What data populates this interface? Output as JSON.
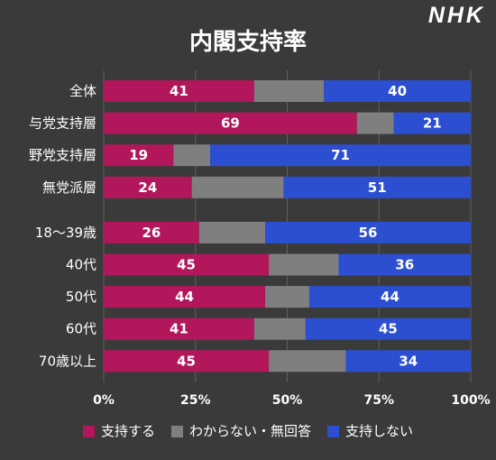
{
  "logo": {
    "text": "NHK"
  },
  "colors": {
    "background": "#3a3a3a",
    "text": "#ffffff",
    "gridline": "#5e5e5e"
  },
  "chart_data": {
    "type": "bar",
    "orientation": "horizontal",
    "stacked": true,
    "title": "内閣支持率",
    "categories": [
      "全体",
      "与党支持層",
      "野党支持層",
      "無党派層",
      "18〜39歳",
      "40代",
      "50代",
      "60代",
      "70歳以上"
    ],
    "series": [
      {
        "name": "支持する",
        "color": "#b3175b",
        "show_values": true,
        "values": [
          41,
          69,
          19,
          24,
          26,
          45,
          44,
          41,
          45
        ]
      },
      {
        "name": "わからない・無回答",
        "color": "#7f7f7f",
        "show_values": false,
        "values": [
          19,
          10,
          10,
          25,
          18,
          19,
          12,
          14,
          21
        ]
      },
      {
        "name": "支持しない",
        "color": "#2b4fd0",
        "show_values": true,
        "values": [
          40,
          21,
          71,
          51,
          56,
          36,
          44,
          45,
          34
        ]
      }
    ],
    "xlim": [
      0,
      100
    ],
    "xticks": [
      0,
      25,
      50,
      75,
      100
    ],
    "xtick_labels": [
      "0%",
      "25%",
      "50%",
      "75%",
      "100%"
    ],
    "grid": "vertical",
    "legend": "bottom"
  }
}
